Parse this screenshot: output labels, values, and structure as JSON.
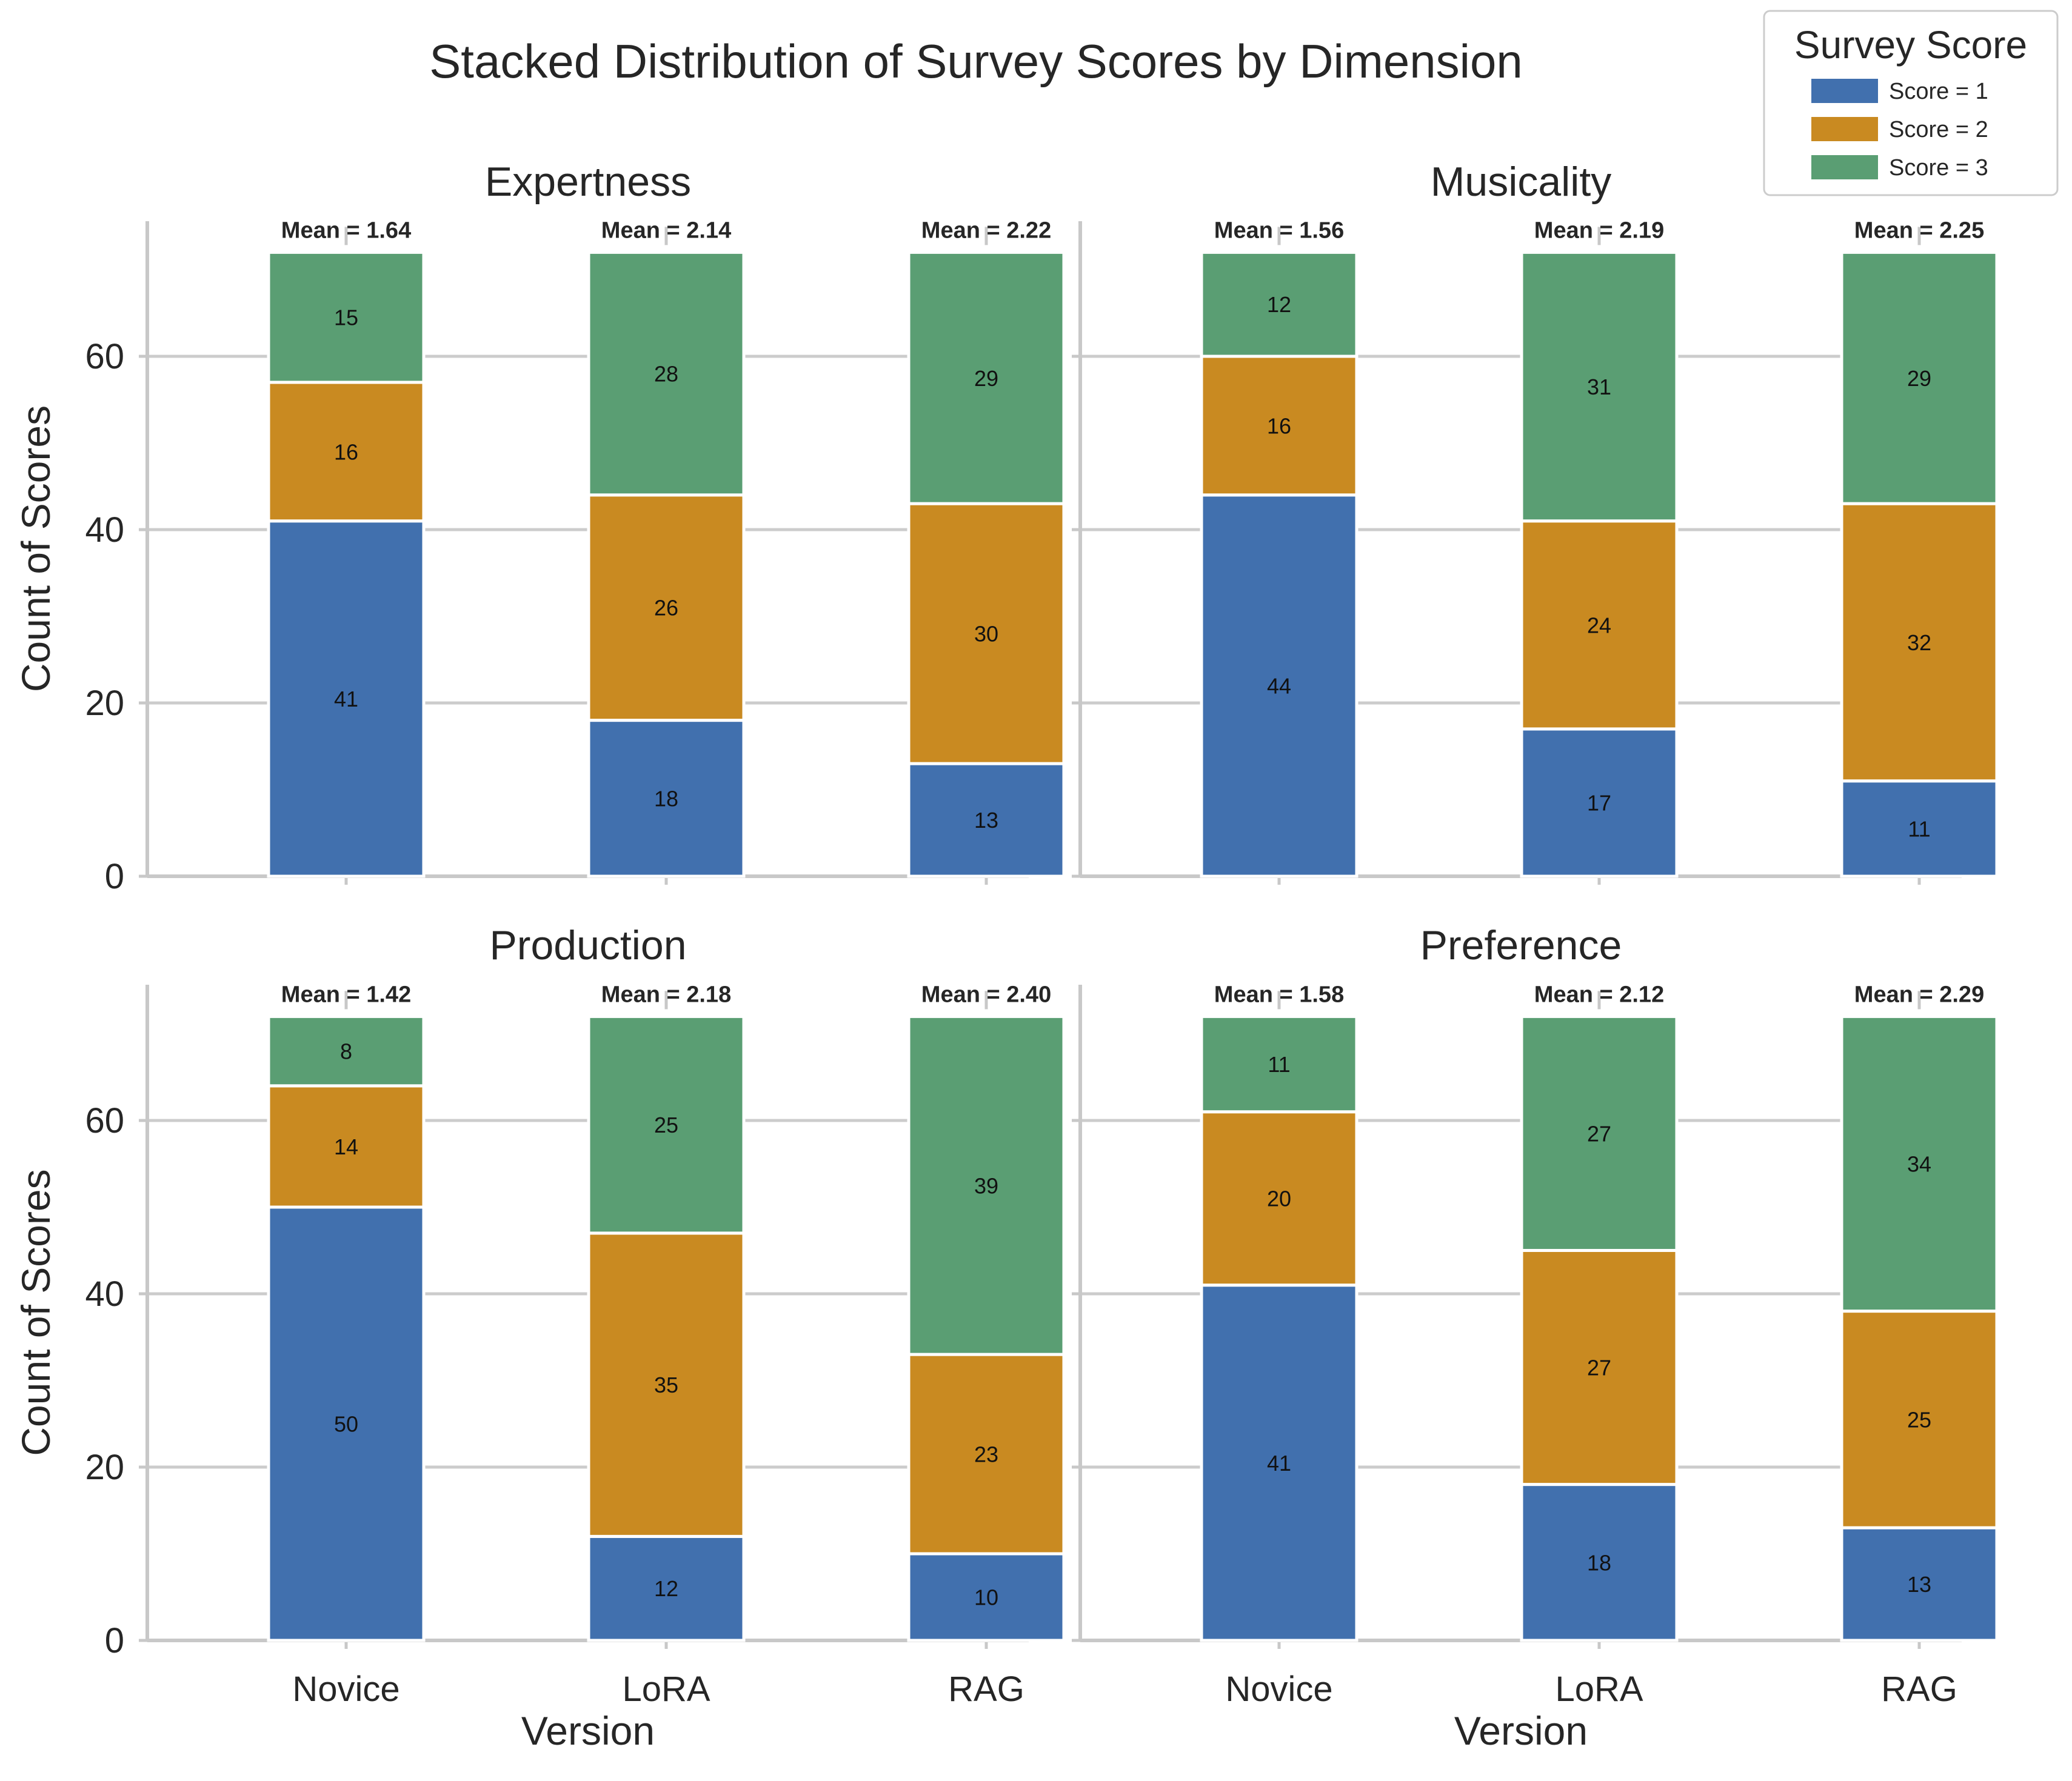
{
  "chart_data": {
    "type": "bar",
    "stacked": true,
    "title": "Stacked Distribution of Survey Scores by Dimension",
    "xlabel": "Version",
    "ylabel": "Count of Scores",
    "categories": [
      "Novice",
      "LoRA",
      "RAG"
    ],
    "ylim": [
      0,
      75
    ],
    "yticks": [
      "0",
      "20",
      "40",
      "60"
    ],
    "grid": "horizontal",
    "legend": {
      "title": "Survey Score",
      "placement": "top-right",
      "entries": [
        "Score = 1",
        "Score = 2",
        "Score = 3"
      ]
    },
    "colors": {
      "score1": "#4170ae",
      "score2": "#c98a21",
      "score3": "#5a9e73",
      "grid": "#cccccc",
      "axis": "#c8c8c8"
    },
    "panels": [
      {
        "title": "Expertness",
        "series": [
          {
            "name": "Score = 1",
            "values": [
              41,
              18,
              13
            ]
          },
          {
            "name": "Score = 2",
            "values": [
              16,
              26,
              30
            ]
          },
          {
            "name": "Score = 3",
            "values": [
              15,
              28,
              29
            ]
          }
        ],
        "means": [
          "Mean = 1.64",
          "Mean = 2.14",
          "Mean = 2.22"
        ]
      },
      {
        "title": "Musicality",
        "series": [
          {
            "name": "Score = 1",
            "values": [
              44,
              17,
              11
            ]
          },
          {
            "name": "Score = 2",
            "values": [
              16,
              24,
              32
            ]
          },
          {
            "name": "Score = 3",
            "values": [
              12,
              31,
              29
            ]
          }
        ],
        "means": [
          "Mean = 1.56",
          "Mean = 2.19",
          "Mean = 2.25"
        ]
      },
      {
        "title": "Production",
        "series": [
          {
            "name": "Score = 1",
            "values": [
              50,
              12,
              10
            ]
          },
          {
            "name": "Score = 2",
            "values": [
              14,
              35,
              23
            ]
          },
          {
            "name": "Score = 3",
            "values": [
              8,
              25,
              39
            ]
          }
        ],
        "means": [
          "Mean = 1.42",
          "Mean = 2.18",
          "Mean = 2.40"
        ]
      },
      {
        "title": "Preference",
        "series": [
          {
            "name": "Score = 1",
            "values": [
              41,
              18,
              13
            ]
          },
          {
            "name": "Score = 2",
            "values": [
              20,
              27,
              25
            ]
          },
          {
            "name": "Score = 3",
            "values": [
              11,
              27,
              34
            ]
          }
        ],
        "means": [
          "Mean = 1.58",
          "Mean = 2.12",
          "Mean = 2.29"
        ]
      }
    ]
  }
}
